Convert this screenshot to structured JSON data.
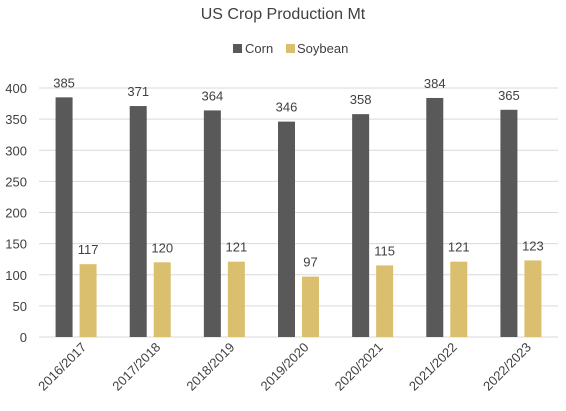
{
  "chart_data": {
    "type": "bar",
    "title": "US Crop Production Mt",
    "xlabel": "",
    "ylabel": "",
    "categories": [
      "2016/2017",
      "2017/2018",
      "2018/2019",
      "2019/2020",
      "2020/2021",
      "2021/2022",
      "2022/2023"
    ],
    "series": [
      {
        "name": "Corn",
        "values": [
          385,
          371,
          364,
          346,
          358,
          384,
          365
        ],
        "color": "#595959"
      },
      {
        "name": "Soybean",
        "values": [
          117,
          120,
          121,
          97,
          115,
          121,
          123
        ],
        "color": "#d9bf6e"
      }
    ],
    "ylim": [
      0,
      400
    ],
    "yticks": [
      0,
      50,
      100,
      150,
      200,
      250,
      300,
      350,
      400
    ],
    "grid": true,
    "legend_position": "top"
  }
}
